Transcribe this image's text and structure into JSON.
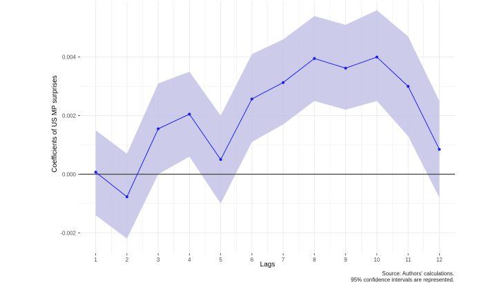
{
  "chart_data": {
    "type": "line",
    "xlabel": "Lags",
    "ylabel": "Coefficients of US MP surprises",
    "x": [
      1,
      2,
      3,
      4,
      5,
      6,
      7,
      8,
      9,
      10,
      11,
      12
    ],
    "ylim": [
      -0.0027,
      0.0059
    ],
    "yticks": [
      -0.002,
      0.0,
      0.002,
      0.004
    ],
    "ytick_labels": [
      "-0.002",
      "0.000",
      "0.002",
      "0.004"
    ],
    "series": [
      {
        "values": [
          7e-05,
          -0.00077,
          0.00155,
          0.00205,
          0.0005,
          0.00257,
          0.00313,
          0.00395,
          0.00362,
          0.004,
          0.003,
          0.00085
        ],
        "lower": [
          -0.0014,
          -0.0022,
          0.0,
          0.0006,
          -0.001,
          0.0011,
          0.0017,
          0.0025,
          0.0022,
          0.0025,
          0.0013,
          -0.0008
        ],
        "upper": [
          0.0015,
          0.0007,
          0.0031,
          0.0035,
          0.002,
          0.0041,
          0.0046,
          0.0054,
          0.0051,
          0.0056,
          0.0047,
          0.0025
        ]
      }
    ],
    "reference_line_y": 0,
    "grid": true,
    "colors": {
      "line": "#1a1aff",
      "band": "#c3c3e6",
      "zero_line": "#4d4d4d",
      "grid": "#ebebeb"
    }
  },
  "caption": {
    "line1": "Source: Authors' calculations.",
    "line2": "95% confidence intervals are represented."
  }
}
